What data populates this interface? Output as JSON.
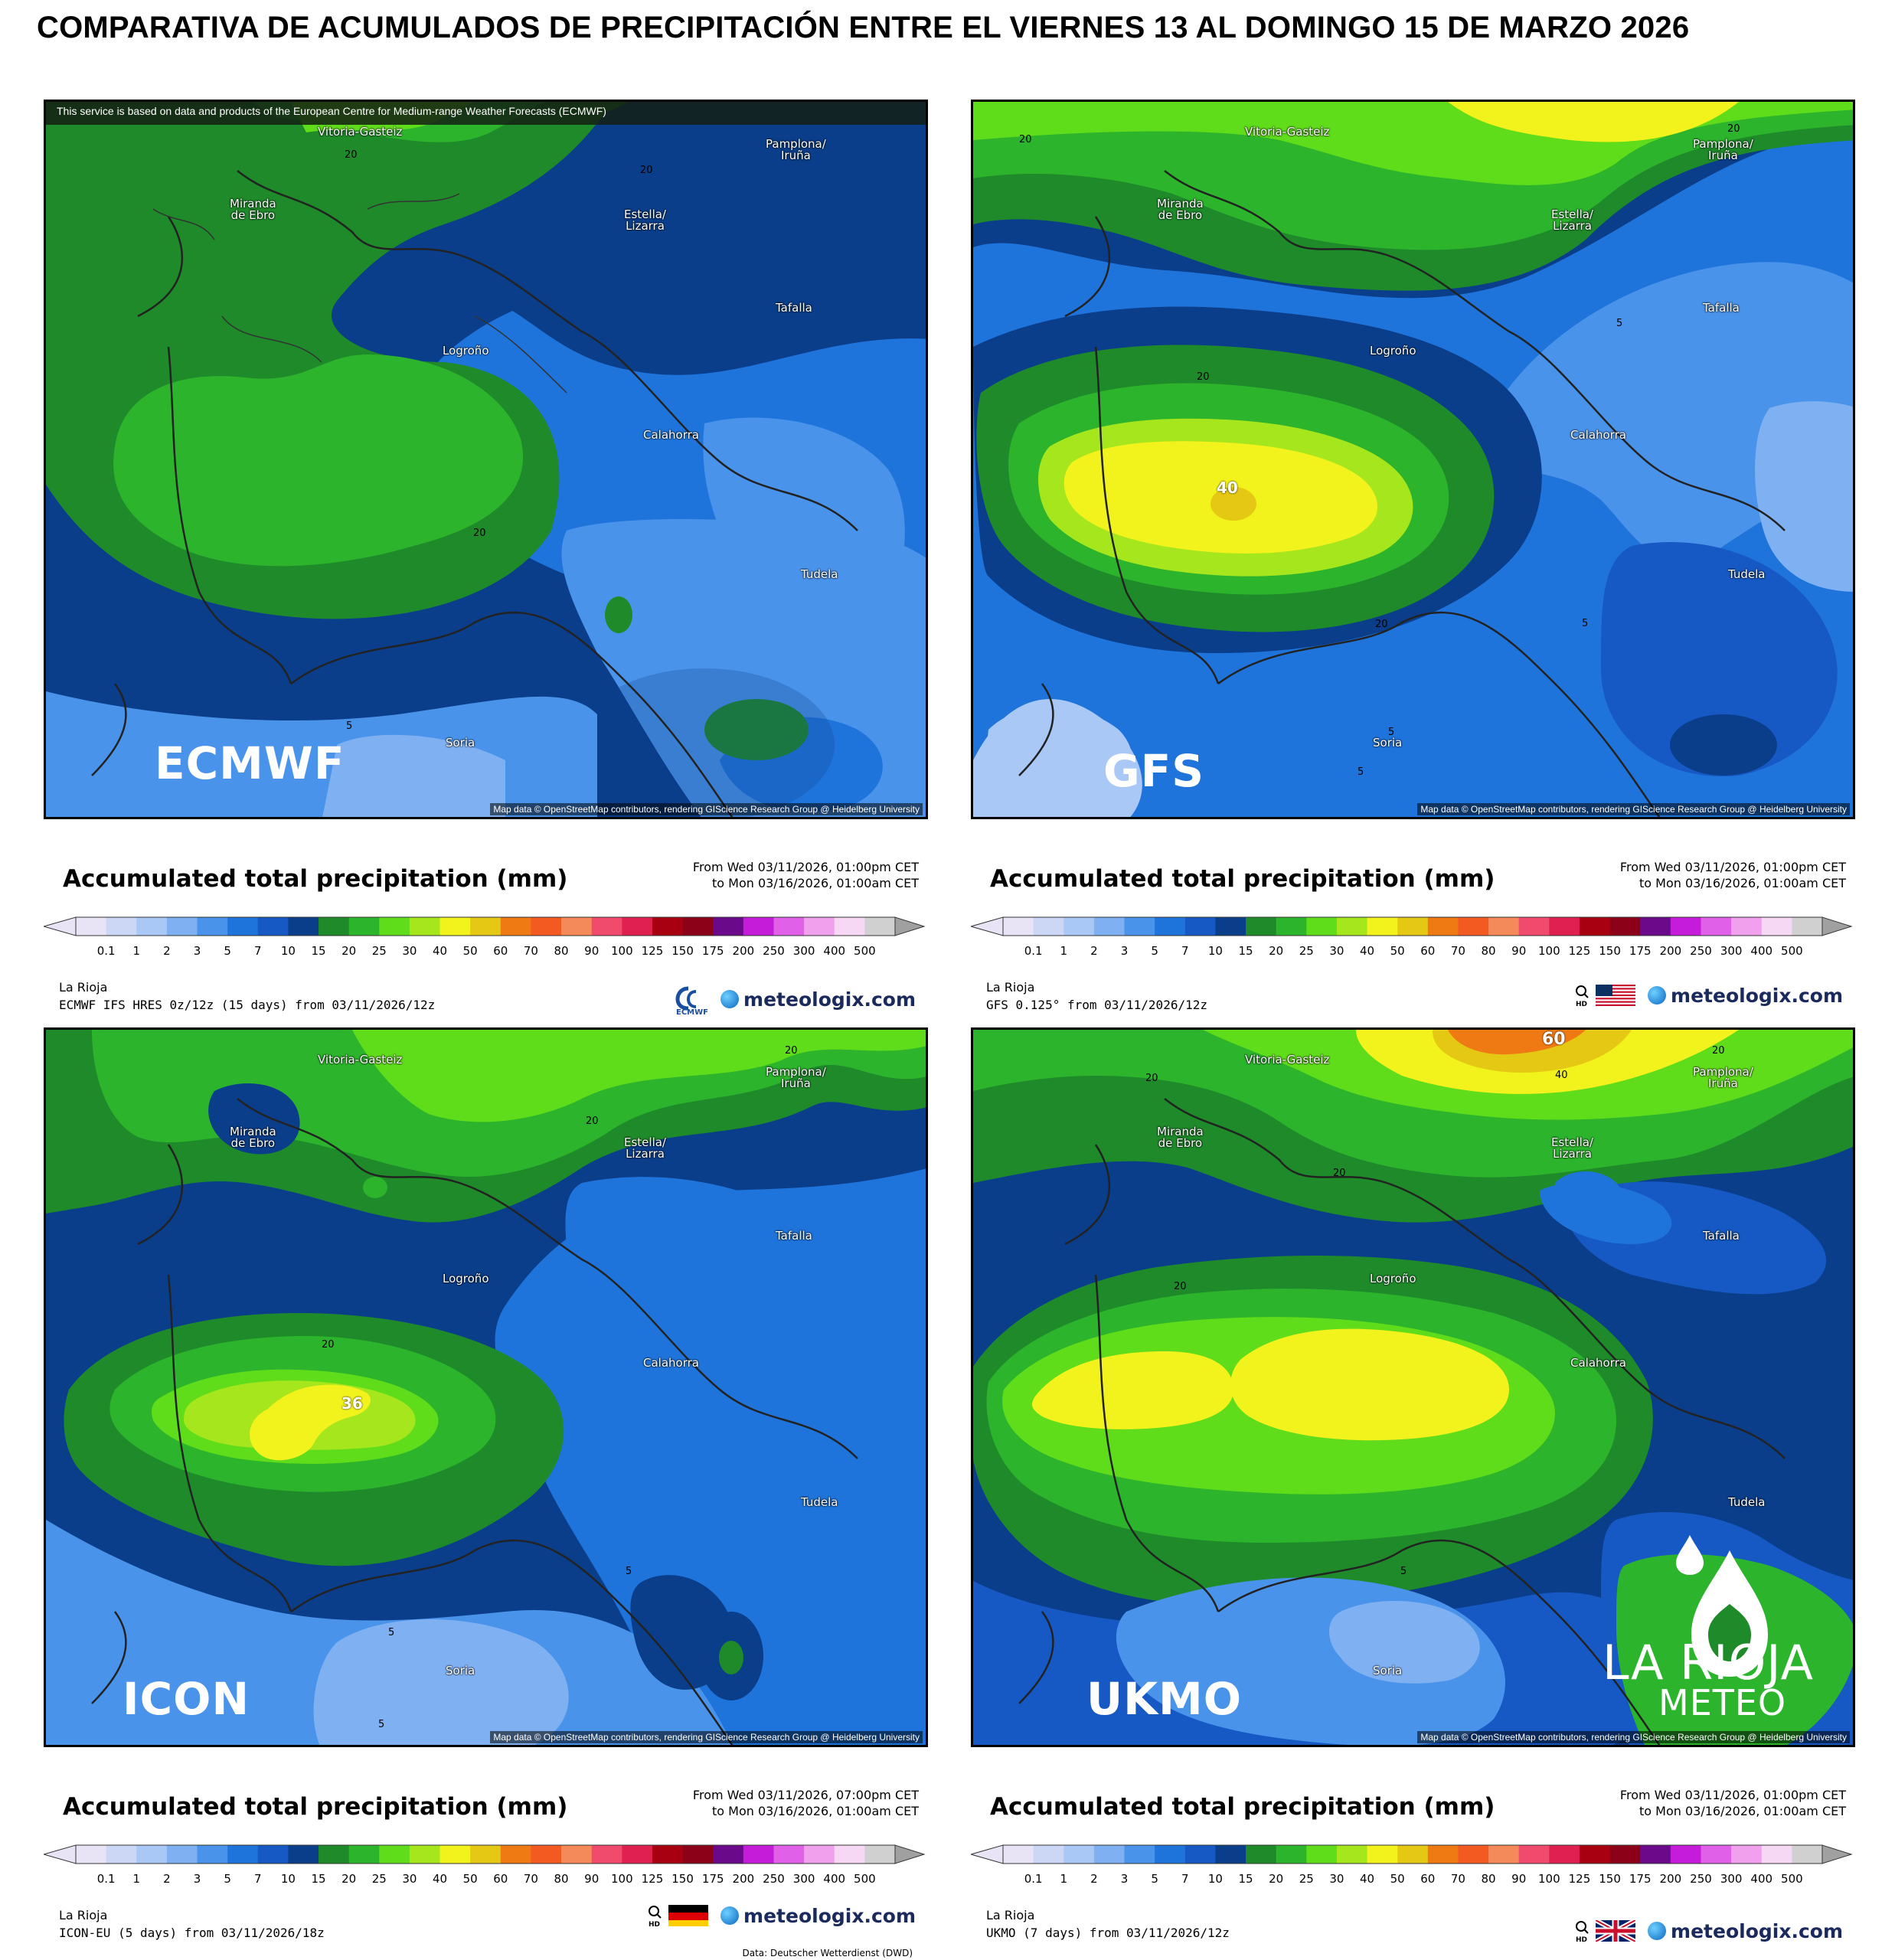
{
  "title": "COMPARATIVA DE ACUMULADOS DE PRECIPITACIÓN ENTRE EL VIERNES 13 AL DOMINGO 15 DE MARZO 2026",
  "credit": "Map data © OpenStreetMap contributors, rendering GIScience Research Group @ Heidelberg University",
  "ecmwf_banner": "This service is based on data and products of the European Centre for Medium-range Weather Forecasts (ECMWF)",
  "cities": {
    "vitoria": "Vitoria-Gasteiz",
    "pamplona1": "Pamplona/",
    "pamplona2": "Iruña",
    "miranda1": "Miranda",
    "miranda2": "de Ebro",
    "estella1": "Estella/",
    "estella2": "Lizarra",
    "tafalla": "Tafalla",
    "logrono": "Logroño",
    "calahorra": "Calahorra",
    "tudela": "Tudela",
    "soria": "Soria"
  },
  "legend": {
    "title": "Accumulated total precipitation (mm)",
    "ticks": [
      "0.1",
      "1",
      "2",
      "3",
      "5",
      "7",
      "10",
      "15",
      "20",
      "25",
      "30",
      "40",
      "50",
      "60",
      "70",
      "80",
      "90",
      "100",
      "125",
      "150",
      "175",
      "200",
      "250",
      "300",
      "400",
      "500"
    ],
    "colors": [
      "#e8e4f6",
      "#cbd7f4",
      "#a9c8f5",
      "#7fb1f2",
      "#4a93ea",
      "#1f74dc",
      "#1659c4",
      "#0b3e8a",
      "#1f8a2a",
      "#2cb42c",
      "#5fdc1a",
      "#a6e61c",
      "#f2f21c",
      "#e5c814",
      "#ef7a14",
      "#f25a22",
      "#f48a5a",
      "#f04a6c",
      "#e02050",
      "#a80010",
      "#8c0018",
      "#6a0a8a",
      "#c41cd8",
      "#e060e8",
      "#f0a0ec",
      "#f6d8f4",
      "#d0d0d0"
    ],
    "region": "La Rioja",
    "brand": "meteologix.com"
  },
  "panels": [
    {
      "model": "ECMWF",
      "from": "From Wed 03/11/2026, 01:00pm CET",
      "to": "to Mon 03/16/2026, 01:00am CET",
      "run": "ECMWF IFS HRES 0z/12z (15 days) from 03/11/2026/12z",
      "contours": [
        "20",
        "20",
        "20",
        "5"
      ],
      "peak": ""
    },
    {
      "model": "GFS",
      "from": "From Wed 03/11/2026, 01:00pm CET",
      "to": "to Mon 03/16/2026, 01:00am CET",
      "run": "GFS 0.125° from 03/11/2026/12z",
      "contours": [
        "20",
        "20",
        "20",
        "20",
        "5",
        "5",
        "5",
        "5"
      ],
      "peak": "40"
    },
    {
      "model": "ICON",
      "from": "From Wed 03/11/2026, 07:00pm CET",
      "to": "to Mon 03/16/2026, 01:00am CET",
      "run": "ICON-EU (5 days) from 03/11/2026/18z",
      "contours": [
        "20",
        "20",
        "20",
        "5",
        "5",
        "5"
      ],
      "peak": "36",
      "dwd": "Data: Deutscher Wetterdienst (DWD)"
    },
    {
      "model": "UKMO",
      "from": "From Wed 03/11/2026, 01:00pm CET",
      "to": "to Mon 03/16/2026, 01:00am CET",
      "run": "UKMO (7 days) from 03/11/2026/12z",
      "contours": [
        "20",
        "20",
        "20",
        "20",
        "5",
        "40"
      ],
      "peak": "60"
    }
  ],
  "logo": {
    "line1": "LA RIOJA",
    "line2": "METEO"
  },
  "icons": [
    "ecmwf-logo-icon",
    "hd-magnifier-icon",
    "usa-flag-icon",
    "germany-flag-icon",
    "uk-flag-icon",
    "globe-icon",
    "water-drop-icon"
  ]
}
